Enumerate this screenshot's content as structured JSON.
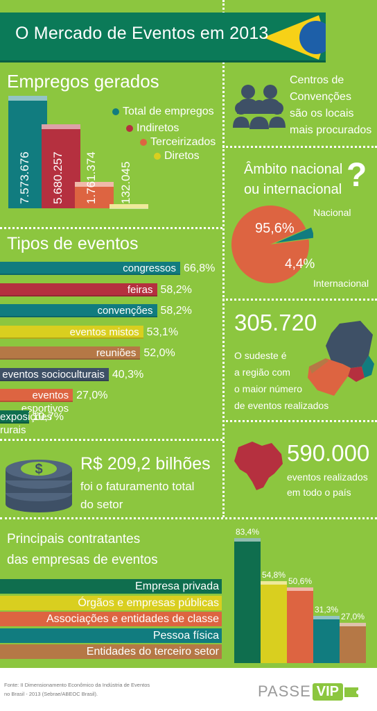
{
  "title": "O Mercado de Eventos em 2013",
  "employment": {
    "heading": "Empregos gerados",
    "legend": [
      "Total de empregos",
      "Indiretos",
      "Terceirizados",
      "Diretos"
    ],
    "value_labels": [
      "7.573.676",
      "5.680.257",
      "1.761.374",
      "132.045"
    ]
  },
  "centers": {
    "text_lines": [
      "Centros de",
      "Convenções",
      "são os locais",
      "mais procurados"
    ],
    "icon": "people-group-icon"
  },
  "scope": {
    "question_lines": [
      "Âmbito nacional",
      "ou internacional"
    ],
    "question_mark": "?",
    "nacional_label": "Nacional",
    "internacional_label": "Internacional",
    "nacional_pct_label": "95,6%",
    "internacional_pct_label": "4,4%"
  },
  "event_types": {
    "heading": "Tipos de eventos",
    "labels": [
      "congressos",
      "feiras",
      "convenções",
      "eventos mistos",
      "reuniões",
      "eventos socioculturais",
      "eventos esportivos",
      "exposições rurais"
    ],
    "pct_labels": [
      "66,8%",
      "58,2%",
      "58,2%",
      "53,1%",
      "52,0%",
      "40,3%",
      "27,0%",
      "10,7%"
    ]
  },
  "southeast": {
    "number": "305.720",
    "text_lines": [
      "O sudeste é",
      "a região com",
      "o maior número",
      "de eventos realizados"
    ],
    "icon": "southeast-map-icon"
  },
  "revenue": {
    "amount": "R$ 209,2 bilhões",
    "text_lines": [
      "foi o faturamento total",
      "do setor"
    ],
    "icon": "coin-stack-icon"
  },
  "events_total": {
    "number": "590.000",
    "text_lines": [
      "eventos realizados",
      "em todo o país"
    ],
    "icon": "brazil-map-icon"
  },
  "contractors": {
    "heading_lines": [
      "Principais contratantes",
      "das empresas de eventos"
    ],
    "labels": [
      "Empresa privada",
      "Órgãos e empresas públicas",
      "Associações e entidades de classe",
      "Pessoa física",
      "Entidades do terceiro setor"
    ],
    "pct_labels": [
      "83,4%",
      "54,8%",
      "50,6%",
      "31,3%",
      "27,0%"
    ]
  },
  "footer": {
    "source_lines": [
      "Fonte: II Dimensionamento Econômico da Indústria de Eventos",
      "no Brasil - 2013 (Sebrae/ABEOC Brasil)."
    ],
    "logo_text_passe": "PASSE",
    "logo_text_vip": "VIP"
  },
  "colors": {
    "background": "#8cc63f",
    "banner": "#0b7a58",
    "flag_yellow": "#f7d117",
    "flag_blue": "#1d5fa8",
    "teal": "#117c7f",
    "crimson": "#b5303f",
    "orange": "#dd6441",
    "yellow": "#d9cf1f",
    "brown": "#b57846",
    "slate": "#3e5066",
    "dark_green": "#0f6e4e"
  },
  "chart_data": [
    {
      "type": "bar",
      "title": "Empregos gerados",
      "categories": [
        "Total de empregos",
        "Indiretos",
        "Terceirizados",
        "Diretos"
      ],
      "values": [
        7573676,
        5680257,
        1761374,
        132045
      ]
    },
    {
      "type": "pie",
      "title": "Âmbito nacional ou internacional?",
      "categories": [
        "Nacional",
        "Internacional"
      ],
      "values": [
        95.6,
        4.4
      ]
    },
    {
      "type": "bar",
      "title": "Tipos de eventos",
      "categories": [
        "congressos",
        "feiras",
        "convenções",
        "eventos mistos",
        "reuniões",
        "eventos socioculturais",
        "eventos esportivos",
        "exposições rurais"
      ],
      "values": [
        66.8,
        58.2,
        58.2,
        53.1,
        52.0,
        40.3,
        27.0,
        10.7
      ]
    },
    {
      "type": "bar",
      "title": "Principais contratantes das empresas de eventos",
      "categories": [
        "Empresa privada",
        "Órgãos e empresas públicas",
        "Associações e entidades de classe",
        "Pessoa física",
        "Entidades do terceiro setor"
      ],
      "values": [
        83.4,
        54.8,
        50.6,
        31.3,
        27.0
      ]
    }
  ]
}
